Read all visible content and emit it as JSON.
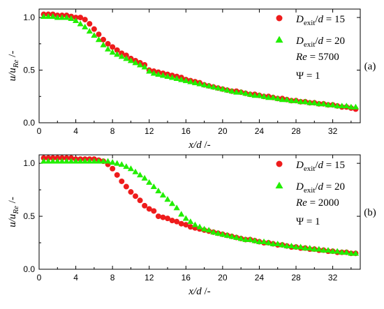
{
  "colors": {
    "series_1": "#ee1c1c",
    "series_2": "#22ee00",
    "frame": "#000000"
  },
  "chart_data": [
    {
      "type": "scatter",
      "panel_label": "(a)",
      "xlabel": {
        "main": "x/d",
        "unit": " /-"
      },
      "ylabel": {
        "main": "u/u",
        "sub": "Re",
        "unit": " /-"
      },
      "xlim": [
        0,
        35
      ],
      "ylim": [
        0,
        1.08
      ],
      "x_ticks": [
        0,
        4,
        8,
        12,
        16,
        20,
        24,
        28,
        32
      ],
      "y_ticks": [
        0.0,
        0.5,
        1.0
      ],
      "y_tick_labels": [
        "0.0",
        "0.5",
        "1.0"
      ],
      "grid": false,
      "legend_placement": "top-right",
      "annotations": [
        {
          "lhs": "Re",
          "rhs": " = 5700"
        },
        {
          "lhs": "Ψ",
          "rhs": " = 1"
        }
      ],
      "series": [
        {
          "name": "D_exit/d = 15",
          "legend": {
            "base": "D",
            "sub": "exit",
            "rest": "/",
            "var": "d",
            "eq": " = 15"
          },
          "marker": "circle",
          "x": [
            0.5,
            1.0,
            1.5,
            2.0,
            2.5,
            3.0,
            3.5,
            4.0,
            4.5,
            5.0,
            5.5,
            6.0,
            6.5,
            7.0,
            7.5,
            8.0,
            8.5,
            9.0,
            9.5,
            10.0,
            10.5,
            11.0,
            11.5,
            12.0,
            12.5,
            13.0,
            13.5,
            14.0,
            14.5,
            15.0,
            15.5,
            16.0,
            16.5,
            17.0,
            17.5,
            18.0,
            18.5,
            19.0,
            19.5,
            20.0,
            20.5,
            21.0,
            21.5,
            22.0,
            22.5,
            23.0,
            23.5,
            24.0,
            24.5,
            25.0,
            25.5,
            26.0,
            26.5,
            27.0,
            27.5,
            28.0,
            28.5,
            29.0,
            29.5,
            30.0,
            30.5,
            31.0,
            31.5,
            32.0,
            32.5,
            33.0,
            33.5,
            34.0,
            34.5
          ],
          "y": [
            1.03,
            1.03,
            1.03,
            1.02,
            1.02,
            1.02,
            1.01,
            1.0,
            1.0,
            0.98,
            0.94,
            0.89,
            0.84,
            0.79,
            0.75,
            0.72,
            0.69,
            0.66,
            0.64,
            0.61,
            0.59,
            0.57,
            0.55,
            0.5,
            0.49,
            0.48,
            0.47,
            0.46,
            0.45,
            0.44,
            0.43,
            0.41,
            0.4,
            0.39,
            0.38,
            0.36,
            0.35,
            0.34,
            0.33,
            0.32,
            0.31,
            0.3,
            0.3,
            0.29,
            0.28,
            0.27,
            0.27,
            0.26,
            0.25,
            0.25,
            0.24,
            0.23,
            0.23,
            0.22,
            0.21,
            0.21,
            0.2,
            0.2,
            0.19,
            0.19,
            0.18,
            0.18,
            0.17,
            0.17,
            0.16,
            0.15,
            0.15,
            0.14,
            0.13
          ]
        },
        {
          "name": "D_exit/d = 20",
          "legend": {
            "base": "D",
            "sub": "exit",
            "rest": "/",
            "var": "d",
            "eq": " = 20"
          },
          "marker": "triangle",
          "x": [
            0.5,
            1.0,
            1.5,
            2.0,
            2.5,
            3.0,
            3.5,
            4.0,
            4.5,
            5.0,
            5.5,
            6.0,
            6.5,
            7.0,
            7.5,
            8.0,
            8.5,
            9.0,
            9.5,
            10.0,
            10.5,
            11.0,
            11.5,
            12.0,
            12.5,
            13.0,
            13.5,
            14.0,
            14.5,
            15.0,
            15.5,
            16.0,
            16.5,
            17.0,
            17.5,
            18.0,
            18.5,
            19.0,
            19.5,
            20.0,
            20.5,
            21.0,
            21.5,
            22.0,
            22.5,
            23.0,
            23.5,
            24.0,
            24.5,
            25.0,
            25.5,
            26.0,
            26.5,
            27.0,
            27.5,
            28.0,
            28.5,
            29.0,
            29.5,
            30.0,
            30.5,
            31.0,
            31.5,
            32.0,
            32.5,
            33.0,
            33.5,
            34.0,
            34.5
          ],
          "y": [
            1.01,
            1.01,
            1.01,
            1.0,
            1.0,
            1.0,
            0.99,
            0.97,
            0.94,
            0.91,
            0.87,
            0.83,
            0.79,
            0.74,
            0.7,
            0.67,
            0.65,
            0.63,
            0.61,
            0.59,
            0.57,
            0.55,
            0.53,
            0.49,
            0.47,
            0.46,
            0.45,
            0.44,
            0.43,
            0.42,
            0.41,
            0.4,
            0.39,
            0.38,
            0.37,
            0.36,
            0.35,
            0.34,
            0.33,
            0.32,
            0.31,
            0.3,
            0.29,
            0.29,
            0.28,
            0.27,
            0.26,
            0.26,
            0.25,
            0.24,
            0.24,
            0.23,
            0.22,
            0.22,
            0.21,
            0.21,
            0.2,
            0.2,
            0.19,
            0.19,
            0.18,
            0.18,
            0.17,
            0.17,
            0.16,
            0.16,
            0.16,
            0.15,
            0.15
          ]
        }
      ]
    },
    {
      "type": "scatter",
      "panel_label": "(b)",
      "xlabel": {
        "main": "x/d",
        "unit": " /-"
      },
      "ylabel": {
        "main": "u/u",
        "sub": "Re",
        "unit": " /-"
      },
      "xlim": [
        0,
        35
      ],
      "ylim": [
        0,
        1.08
      ],
      "x_ticks": [
        0,
        4,
        8,
        12,
        16,
        20,
        24,
        28,
        32
      ],
      "y_ticks": [
        0.0,
        0.5,
        1.0
      ],
      "y_tick_labels": [
        "0.0",
        "0.5",
        "1.0"
      ],
      "grid": false,
      "legend_placement": "top-right",
      "annotations": [
        {
          "lhs": "Re",
          "rhs": " = 2000"
        },
        {
          "lhs": "Ψ",
          "rhs": " = 1"
        }
      ],
      "series": [
        {
          "name": "D_exit/d = 15",
          "legend": {
            "base": "D",
            "sub": "exit",
            "rest": "/",
            "var": "d",
            "eq": " = 15"
          },
          "marker": "circle",
          "x": [
            0.5,
            1.0,
            1.5,
            2.0,
            2.5,
            3.0,
            3.5,
            4.0,
            4.5,
            5.0,
            5.5,
            6.0,
            6.5,
            7.0,
            7.5,
            8.0,
            8.5,
            9.0,
            9.5,
            10.0,
            10.5,
            11.0,
            11.5,
            12.0,
            12.5,
            13.0,
            13.5,
            14.0,
            14.5,
            15.0,
            15.5,
            16.0,
            16.5,
            17.0,
            17.5,
            18.0,
            18.5,
            19.0,
            19.5,
            20.0,
            20.5,
            21.0,
            21.5,
            22.0,
            22.5,
            23.0,
            23.5,
            24.0,
            24.5,
            25.0,
            25.5,
            26.0,
            26.5,
            27.0,
            27.5,
            28.0,
            28.5,
            29.0,
            29.5,
            30.0,
            30.5,
            31.0,
            31.5,
            32.0,
            32.5,
            33.0,
            33.5,
            34.0,
            34.5
          ],
          "y": [
            1.05,
            1.05,
            1.05,
            1.05,
            1.05,
            1.05,
            1.05,
            1.04,
            1.04,
            1.04,
            1.04,
            1.04,
            1.03,
            1.02,
            0.99,
            0.95,
            0.89,
            0.83,
            0.78,
            0.73,
            0.69,
            0.65,
            0.6,
            0.57,
            0.55,
            0.5,
            0.49,
            0.48,
            0.46,
            0.45,
            0.43,
            0.42,
            0.4,
            0.39,
            0.38,
            0.37,
            0.36,
            0.35,
            0.34,
            0.33,
            0.32,
            0.31,
            0.3,
            0.29,
            0.28,
            0.28,
            0.27,
            0.26,
            0.25,
            0.25,
            0.24,
            0.23,
            0.23,
            0.22,
            0.21,
            0.21,
            0.2,
            0.2,
            0.19,
            0.19,
            0.18,
            0.18,
            0.17,
            0.17,
            0.16,
            0.16,
            0.16,
            0.15,
            0.15
          ]
        },
        {
          "name": "D_exit/d = 20",
          "legend": {
            "base": "D",
            "sub": "exit",
            "rest": "/",
            "var": "d",
            "eq": " = 20"
          },
          "marker": "triangle",
          "x": [
            0.5,
            1.0,
            1.5,
            2.0,
            2.5,
            3.0,
            3.5,
            4.0,
            4.5,
            5.0,
            5.5,
            6.0,
            6.5,
            7.0,
            7.5,
            8.0,
            8.5,
            9.0,
            9.5,
            10.0,
            10.5,
            11.0,
            11.5,
            12.0,
            12.5,
            13.0,
            13.5,
            14.0,
            14.5,
            15.0,
            15.5,
            16.0,
            16.5,
            17.0,
            17.5,
            18.0,
            18.5,
            19.0,
            19.5,
            20.0,
            20.5,
            21.0,
            21.5,
            22.0,
            22.5,
            23.0,
            23.5,
            24.0,
            24.5,
            25.0,
            25.5,
            26.0,
            26.5,
            27.0,
            27.5,
            28.0,
            28.5,
            29.0,
            29.5,
            30.0,
            30.5,
            31.0,
            31.5,
            32.0,
            32.5,
            33.0,
            33.5,
            34.0,
            34.5
          ],
          "y": [
            1.02,
            1.02,
            1.02,
            1.02,
            1.02,
            1.02,
            1.02,
            1.02,
            1.02,
            1.02,
            1.02,
            1.02,
            1.02,
            1.02,
            1.02,
            1.01,
            1.0,
            0.99,
            0.97,
            0.95,
            0.92,
            0.89,
            0.86,
            0.82,
            0.78,
            0.74,
            0.7,
            0.66,
            0.62,
            0.58,
            0.52,
            0.48,
            0.45,
            0.42,
            0.4,
            0.38,
            0.37,
            0.35,
            0.34,
            0.33,
            0.32,
            0.31,
            0.3,
            0.29,
            0.28,
            0.28,
            0.27,
            0.26,
            0.26,
            0.25,
            0.24,
            0.24,
            0.23,
            0.22,
            0.22,
            0.21,
            0.21,
            0.2,
            0.2,
            0.19,
            0.19,
            0.18,
            0.18,
            0.17,
            0.17,
            0.16,
            0.16,
            0.15,
            0.15
          ]
        }
      ]
    }
  ]
}
